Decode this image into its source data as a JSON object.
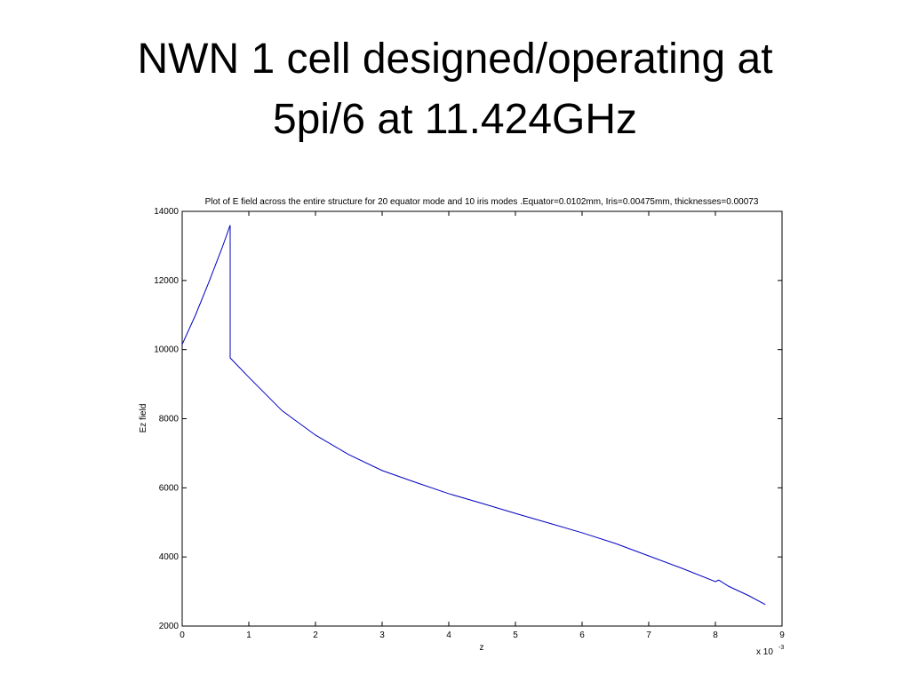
{
  "slide": {
    "title_lines": [
      "NWN 1 cell designed/operating at",
      "5pi/6 at 11.424GHz"
    ]
  },
  "chart_data": {
    "type": "line",
    "title": "Plot of E field across the entire structure  for 20 equator mode and 10 iris modes .Equator=0.0102mm, Iris=0.00475mm, thicknesses=0.00073",
    "x_label": "z",
    "y_label": "Ez field",
    "x_scale_label": "x 10",
    "x_scale_exponent": "-3",
    "x": [
      0,
      0.2,
      0.4,
      0.6,
      0.72,
      0.72,
      1.0,
      1.5,
      2.0,
      2.5,
      3.0,
      3.5,
      4.0,
      4.5,
      5.0,
      5.5,
      6.0,
      6.5,
      7.0,
      7.5,
      8.0,
      8.05,
      8.2,
      8.5,
      8.75
    ],
    "series": [
      {
        "color": "#0000c0",
        "values": [
          10150,
          11000,
          11950,
          12950,
          13600,
          9760,
          9200,
          8230,
          7525,
          6960,
          6500,
          6160,
          5830,
          5550,
          5260,
          4980,
          4700,
          4390,
          4030,
          3670,
          3285,
          3330,
          3150,
          2880,
          2620
        ]
      }
    ],
    "xlim": [
      0,
      9
    ],
    "xticks": [
      0,
      1,
      2,
      3,
      4,
      5,
      6,
      7,
      8,
      9
    ],
    "ylim": [
      2000,
      14000
    ],
    "yticks": [
      2000,
      4000,
      6000,
      8000,
      10000,
      12000,
      14000
    ]
  }
}
